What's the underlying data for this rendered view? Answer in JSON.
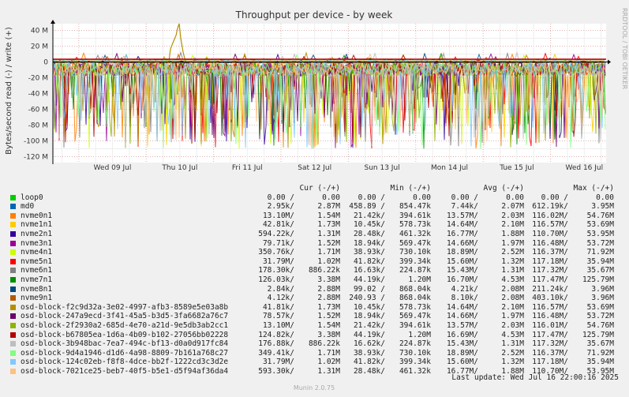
{
  "chart_data": {
    "type": "area",
    "title": "Throughput per device - by week",
    "ylabel": "Bytes/second read (-) / write (+)",
    "side_label": "RRDTOOL / TOBI OETIKER",
    "footer": "Munin 2.0.75",
    "y_ticks": [
      "40 M",
      "20 M",
      "0",
      "-20 M",
      "-40 M",
      "-60 M",
      "-80 M",
      "-100 M",
      "-120 M"
    ],
    "y_values": [
      40,
      20,
      0,
      -20,
      -40,
      -60,
      -80,
      -100,
      -120
    ],
    "ylim": [
      -125,
      50
    ],
    "x_ticks": [
      "Wed 09 Jul",
      "Thu 10 Jul",
      "Fri 11 Jul",
      "Sat 12 Jul",
      "Sun 13 Jul",
      "Mon 14 Jul",
      "Tue 15 Jul",
      "Wed 16 Jul"
    ],
    "grid": true,
    "legend_headers": {
      "cur": "Cur (-/+)",
      "min": "Min (-/+)",
      "avg": "Avg (-/+)",
      "max": "Max (-/+)"
    },
    "series": [
      {
        "name": "loop0",
        "color": "#00cc00",
        "cur": [
          "0.00 /",
          "0.00"
        ],
        "min": [
          "0.00 /",
          "0.00"
        ],
        "avg": [
          "0.00 /",
          "0.00"
        ],
        "max": [
          "0.00 /",
          "0.00"
        ]
      },
      {
        "name": "md0",
        "color": "#0066b3",
        "cur": [
          "2.95k/",
          "2.87M"
        ],
        "min": [
          "458.89 /",
          "854.47k"
        ],
        "avg": [
          "7.44k/",
          "2.07M"
        ],
        "max": [
          "612.19k/",
          "3.95M"
        ]
      },
      {
        "name": "nvme0n1",
        "color": "#ff8000",
        "cur": [
          "13.10M/",
          "1.54M"
        ],
        "min": [
          "21.42k/",
          "394.61k"
        ],
        "avg": [
          "13.57M/",
          "2.03M"
        ],
        "max": [
          "116.02M/",
          "54.76M"
        ]
      },
      {
        "name": "nvme1n1",
        "color": "#ffcc00",
        "cur": [
          "42.81k/",
          "1.73M"
        ],
        "min": [
          "10.45k/",
          "578.73k"
        ],
        "avg": [
          "14.64M/",
          "2.10M"
        ],
        "max": [
          "116.57M/",
          "53.69M"
        ]
      },
      {
        "name": "nvme2n1",
        "color": "#330099",
        "cur": [
          "594.22k/",
          "1.31M"
        ],
        "min": [
          "28.48k/",
          "461.32k"
        ],
        "avg": [
          "16.77M/",
          "1.88M"
        ],
        "max": [
          "110.70M/",
          "53.95M"
        ]
      },
      {
        "name": "nvme3n1",
        "color": "#990099",
        "cur": [
          "79.71k/",
          "1.52M"
        ],
        "min": [
          "18.94k/",
          "569.47k"
        ],
        "avg": [
          "14.66M/",
          "1.97M"
        ],
        "max": [
          "116.48M/",
          "53.72M"
        ]
      },
      {
        "name": "nvme4n1",
        "color": "#ccff00",
        "cur": [
          "350.76k/",
          "1.71M"
        ],
        "min": [
          "38.93k/",
          "730.10k"
        ],
        "avg": [
          "18.89M/",
          "2.52M"
        ],
        "max": [
          "116.37M/",
          "71.92M"
        ]
      },
      {
        "name": "nvme5n1",
        "color": "#ff0000",
        "cur": [
          "31.79M/",
          "1.02M"
        ],
        "min": [
          "41.82k/",
          "399.34k"
        ],
        "avg": [
          "15.60M/",
          "1.32M"
        ],
        "max": [
          "117.18M/",
          "35.94M"
        ]
      },
      {
        "name": "nvme6n1",
        "color": "#808080",
        "cur": [
          "178.30k/",
          "886.22k"
        ],
        "min": [
          "16.63k/",
          "224.87k"
        ],
        "avg": [
          "15.43M/",
          "1.31M"
        ],
        "max": [
          "117.32M/",
          "35.67M"
        ]
      },
      {
        "name": "nvme7n1",
        "color": "#008f00",
        "cur": [
          "126.03k/",
          "3.38M"
        ],
        "min": [
          "44.19k/",
          "1.20M"
        ],
        "avg": [
          "16.70M/",
          "4.53M"
        ],
        "max": [
          "117.47M/",
          "125.79M"
        ]
      },
      {
        "name": "nvme8n1",
        "color": "#00487d",
        "cur": [
          "2.84k/",
          "2.88M"
        ],
        "min": [
          "99.02 /",
          "868.04k"
        ],
        "avg": [
          "4.21k/",
          "2.08M"
        ],
        "max": [
          "211.24k/",
          "3.96M"
        ]
      },
      {
        "name": "nvme9n1",
        "color": "#b35a00",
        "cur": [
          "4.12k/",
          "2.88M"
        ],
        "min": [
          "240.93 /",
          "868.04k"
        ],
        "avg": [
          "8.10k/",
          "2.08M"
        ],
        "max": [
          "403.10k/",
          "3.96M"
        ]
      },
      {
        "name": "osd-block-f2c9d32a-3e02-4997-afb3-8589e5e03a8b",
        "color": "#b38f00",
        "cur": [
          "41.81k/",
          "1.73M"
        ],
        "min": [
          "10.45k/",
          "578.73k"
        ],
        "avg": [
          "14.64M/",
          "2.10M"
        ],
        "max": [
          "116.57M/",
          "53.69M"
        ]
      },
      {
        "name": "osd-block-247a9ecd-3f41-45a5-b3d5-3fa6682a76c7",
        "color": "#6b006b",
        "cur": [
          "78.57k/",
          "1.52M"
        ],
        "min": [
          "18.94k/",
          "569.47k"
        ],
        "avg": [
          "14.66M/",
          "1.97M"
        ],
        "max": [
          "116.48M/",
          "53.72M"
        ]
      },
      {
        "name": "osd-block-2f2930a2-685d-4e70-a21d-9e5db3ab2cc1",
        "color": "#8fb300",
        "cur": [
          "13.10M/",
          "1.54M"
        ],
        "min": [
          "21.42k/",
          "394.61k"
        ],
        "avg": [
          "13.57M/",
          "2.03M"
        ],
        "max": [
          "116.01M/",
          "54.76M"
        ]
      },
      {
        "name": "osd-block-b67805ea-1d6a-4b09-b102-27056bb02228",
        "color": "#b30000",
        "cur": [
          "124.82k/",
          "3.38M"
        ],
        "min": [
          "44.19k/",
          "1.20M"
        ],
        "avg": [
          "16.69M/",
          "4.53M"
        ],
        "max": [
          "117.47M/",
          "125.79M"
        ]
      },
      {
        "name": "osd-block-3b948bac-7ea7-494c-bf13-d0a0d917fc84",
        "color": "#bebebe",
        "cur": [
          "176.88k/",
          "886.22k"
        ],
        "min": [
          "16.62k/",
          "224.87k"
        ],
        "avg": [
          "15.43M/",
          "1.31M"
        ],
        "max": [
          "117.32M/",
          "35.67M"
        ]
      },
      {
        "name": "osd-block-9d4a1946-d1d6-4a98-8809-7b161a768c27",
        "color": "#80ff80",
        "cur": [
          "349.41k/",
          "1.71M"
        ],
        "min": [
          "38.93k/",
          "730.10k"
        ],
        "avg": [
          "18.89M/",
          "2.52M"
        ],
        "max": [
          "116.37M/",
          "71.92M"
        ]
      },
      {
        "name": "osd-block-124c02eb-f8f8-4dce-bb2f-1222cd3c3d2e",
        "color": "#80c9ff",
        "cur": [
          "31.79M/",
          "1.02M"
        ],
        "min": [
          "41.82k/",
          "399.34k"
        ],
        "avg": [
          "15.60M/",
          "1.32M"
        ],
        "max": [
          "117.18M/",
          "35.94M"
        ]
      },
      {
        "name": "osd-block-7021ce25-beb7-40f5-b5e1-d5f94af36da4",
        "color": "#ffc080",
        "cur": [
          "593.30k/",
          "1.31M"
        ],
        "min": [
          "28.48k/",
          "461.32k"
        ],
        "avg": [
          "16.77M/",
          "1.88M"
        ],
        "max": [
          "110.70M/",
          "53.95M"
        ]
      }
    ],
    "last_update": "Last update: Wed Jul 16 22:00:16 2025"
  }
}
